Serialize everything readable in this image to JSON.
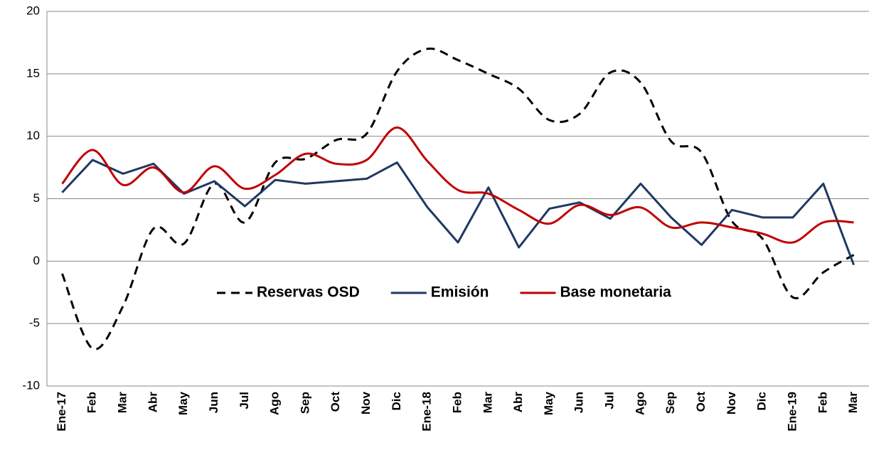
{
  "chart_data": {
    "type": "line",
    "categories": [
      "Ene-17",
      "Feb",
      "Mar",
      "Abr",
      "May",
      "Jun",
      "Jul",
      "Ago",
      "Sep",
      "Oct",
      "Nov",
      "Dic",
      "Ene-18",
      "Feb",
      "Mar",
      "Abr",
      "May",
      "Jun",
      "Jul",
      "Ago",
      "Sep",
      "Oct",
      "Nov",
      "Dic",
      "Ene-19",
      "Feb",
      "Mar"
    ],
    "series": [
      {
        "name": "Reservas OSD",
        "color": "#000000",
        "dashed": true,
        "smooth": true,
        "values": [
          -1.0,
          -7.0,
          -3.6,
          2.6,
          1.4,
          6.2,
          3.1,
          7.9,
          8.2,
          9.7,
          10.2,
          15.2,
          17.0,
          16.1,
          15.0,
          13.8,
          11.3,
          11.8,
          15.1,
          14.3,
          9.6,
          8.7,
          3.2,
          1.8,
          -2.9,
          -0.9,
          0.5
        ]
      },
      {
        "name": "Emisión",
        "color": "#1f3864",
        "dashed": false,
        "smooth": false,
        "values": [
          5.5,
          8.1,
          7.0,
          7.8,
          5.4,
          6.4,
          4.4,
          6.5,
          6.2,
          6.4,
          6.6,
          7.9,
          4.3,
          1.5,
          5.9,
          1.1,
          4.2,
          4.7,
          3.4,
          6.2,
          3.5,
          1.3,
          4.1,
          3.5,
          3.5,
          6.2,
          -0.3
        ]
      },
      {
        "name": "Base monetaria",
        "color": "#c00000",
        "dashed": false,
        "smooth": true,
        "values": [
          6.2,
          8.9,
          6.1,
          7.5,
          5.5,
          7.6,
          5.8,
          6.9,
          8.6,
          7.8,
          8.1,
          10.7,
          8.0,
          5.7,
          5.4,
          4.1,
          3.0,
          4.5,
          3.7,
          4.3,
          2.7,
          3.1,
          2.7,
          2.2,
          1.5,
          3.1,
          3.1
        ]
      }
    ],
    "ylim": [
      -10,
      20
    ],
    "yticks": [
      -10,
      -5,
      0,
      5,
      10,
      15,
      20
    ],
    "grid": true
  }
}
